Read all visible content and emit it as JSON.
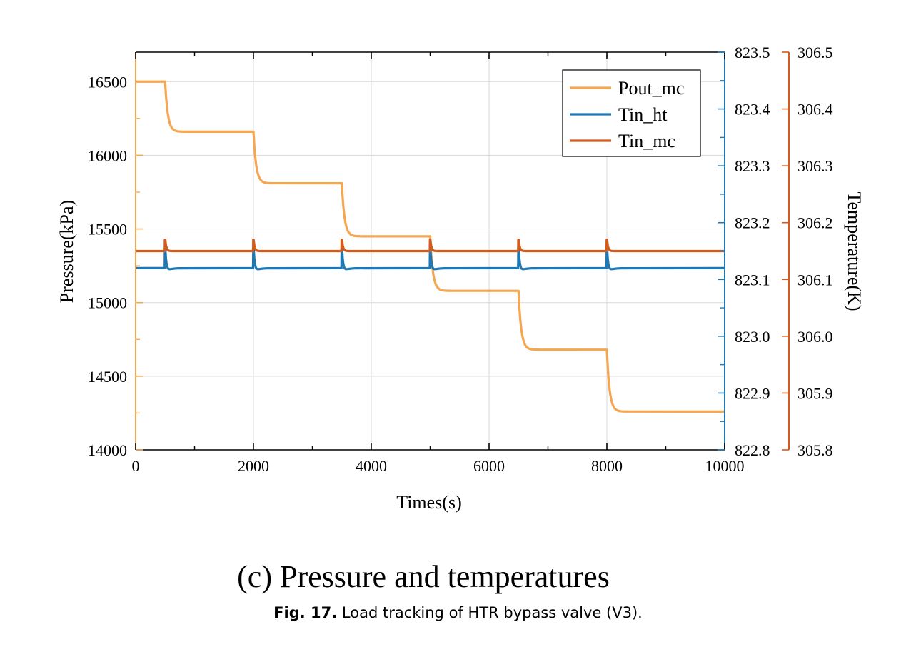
{
  "chart_data": {
    "type": "line",
    "subtitle": "(c) Pressure and temperatures",
    "xlabel": "Times(s)",
    "ylabel_left": "Pressure(kPa)",
    "ylabel_right": "Temperature(K)",
    "xlim": [
      0,
      10000
    ],
    "xticks": [
      "0",
      "2000",
      "4000",
      "6000",
      "8000",
      "10000"
    ],
    "ylim_left": [
      14000,
      16700
    ],
    "yticks_left": [
      "14000",
      "14500",
      "15000",
      "15500",
      "16000",
      "16500"
    ],
    "ylim_right_ht": [
      822.8,
      823.5
    ],
    "yticks_right_ht": [
      "822.8",
      "822.9",
      "823.0",
      "823.1",
      "823.2",
      "823.3",
      "823.4",
      "823.5"
    ],
    "ylim_right_mc": [
      305.8,
      306.5
    ],
    "yticks_right_mc": [
      "305.8",
      "305.9",
      "306.0",
      "306.1",
      "306.2",
      "306.3",
      "306.4",
      "306.5"
    ],
    "grid": true,
    "legend_position": "top-right",
    "step_times": [
      500,
      2000,
      3500,
      5000,
      6500,
      8000
    ],
    "series": [
      {
        "name": "Pout_mc",
        "axis": "pressure",
        "color": "#F4A651",
        "levels": [
          16500,
          16160,
          15810,
          15450,
          15080,
          14680,
          14260
        ]
      },
      {
        "name": "Tin_ht",
        "axis": "temperature_ht",
        "color": "#1F77B4",
        "baseline": 823.12,
        "peak": 823.155
      },
      {
        "name": "Tin_mc",
        "axis": "temperature_mc",
        "color": "#D35B1C",
        "baseline": 306.15,
        "peak": 306.17
      }
    ]
  },
  "caption": {
    "label": "Fig. 17.",
    "text": "Load tracking of HTR bypass valve (V3)."
  }
}
